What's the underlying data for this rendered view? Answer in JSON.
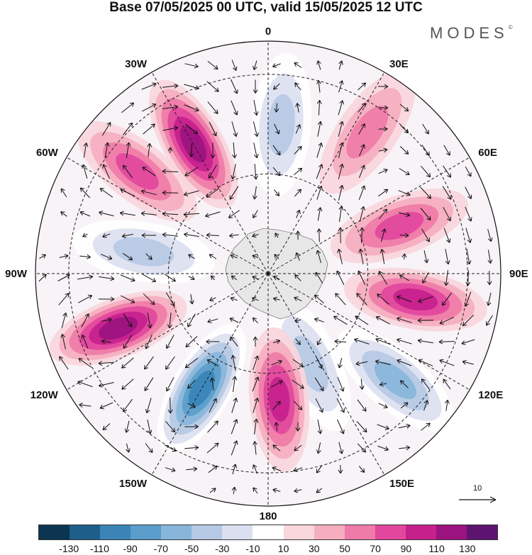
{
  "title": "Base 07/05/2025 00 UTC, valid 15/05/2025 12 UTC",
  "logo": "MODES",
  "logo_mark": "©",
  "longitude_labels": [
    "0",
    "30E",
    "60E",
    "90E",
    "120E",
    "150E",
    "180",
    "150W",
    "120W",
    "90W",
    "60W",
    "30W"
  ],
  "reference_vector": {
    "label": "10"
  },
  "colorbar": {
    "tick_labels": [
      "-130",
      "-110",
      "-90",
      "-70",
      "-50",
      "-30",
      "-10",
      "10",
      "30",
      "50",
      "70",
      "90",
      "110",
      "130"
    ],
    "colors": [
      "#0b3550",
      "#1d5f8a",
      "#3a84b8",
      "#5b9dcb",
      "#88b6db",
      "#b5c9e4",
      "#dcdff0",
      "#ffffff",
      "#f9d6dc",
      "#f5aebf",
      "#ef7ba8",
      "#e2479e",
      "#c5208c",
      "#9b137f",
      "#5c1470"
    ]
  },
  "map": {
    "projection": "south-polar-stereographic",
    "anomaly_centers": [
      {
        "lon": 5,
        "lat": -45,
        "value": -60
      },
      {
        "lon": 35,
        "lat": -38,
        "value": 50
      },
      {
        "lon": 70,
        "lat": -48,
        "value": 80
      },
      {
        "lon": 100,
        "lat": -45,
        "value": 90
      },
      {
        "lon": 130,
        "lat": -40,
        "value": -70
      },
      {
        "lon": 155,
        "lat": -60,
        "value": -50
      },
      {
        "lon": 175,
        "lat": -52,
        "value": 90
      },
      {
        "lon": -150,
        "lat": -50,
        "value": -110
      },
      {
        "lon": -110,
        "lat": -42,
        "value": 120
      },
      {
        "lon": -80,
        "lat": -52,
        "value": -60
      },
      {
        "lon": -52,
        "lat": -40,
        "value": 70
      },
      {
        "lon": -30,
        "lat": -45,
        "value": 110
      }
    ]
  }
}
